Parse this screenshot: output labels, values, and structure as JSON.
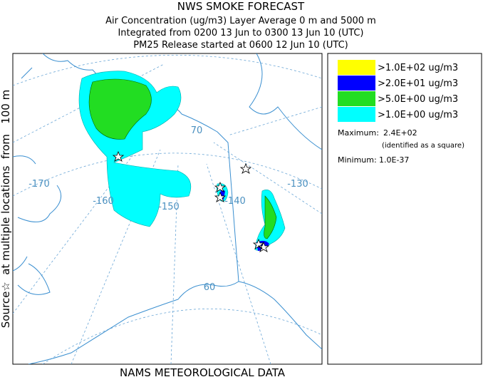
{
  "header": {
    "title": "NWS SMOKE FORECAST",
    "lines": [
      "Air Concentration (ug/m3) Layer Average    0 m and  5000 m",
      "Integrated from 0200 13 Jun to 0300 13 Jun 10 (UTC)",
      "PM25 Release started at 0600 12 Jun 10 (UTC)"
    ]
  },
  "side_label": "Source☆  at multiple locations  from   100 m",
  "footer": "NAMS METEOROLOGICAL DATA",
  "legend": {
    "items": [
      {
        "label": ">1.0E+02 ug/m3",
        "color": "#ffff00"
      },
      {
        "label": ">2.0E+01 ug/m3",
        "color": "#0000ff"
      },
      {
        "label": ">5.0E+00 ug/m3",
        "color": "#22dd22"
      },
      {
        "label": ">1.0E+00 ug/m3",
        "color": "#00ffff"
      }
    ],
    "maximum": {
      "label": "Maximum:",
      "value": "2.4E+02",
      "note": "(identified as a square)"
    },
    "minimum": {
      "label": "Minimum:",
      "value": "1.0E-37"
    }
  },
  "map": {
    "labels": [
      "-170",
      "-160",
      "-150",
      "-140",
      "-130",
      "70",
      "60"
    ]
  }
}
